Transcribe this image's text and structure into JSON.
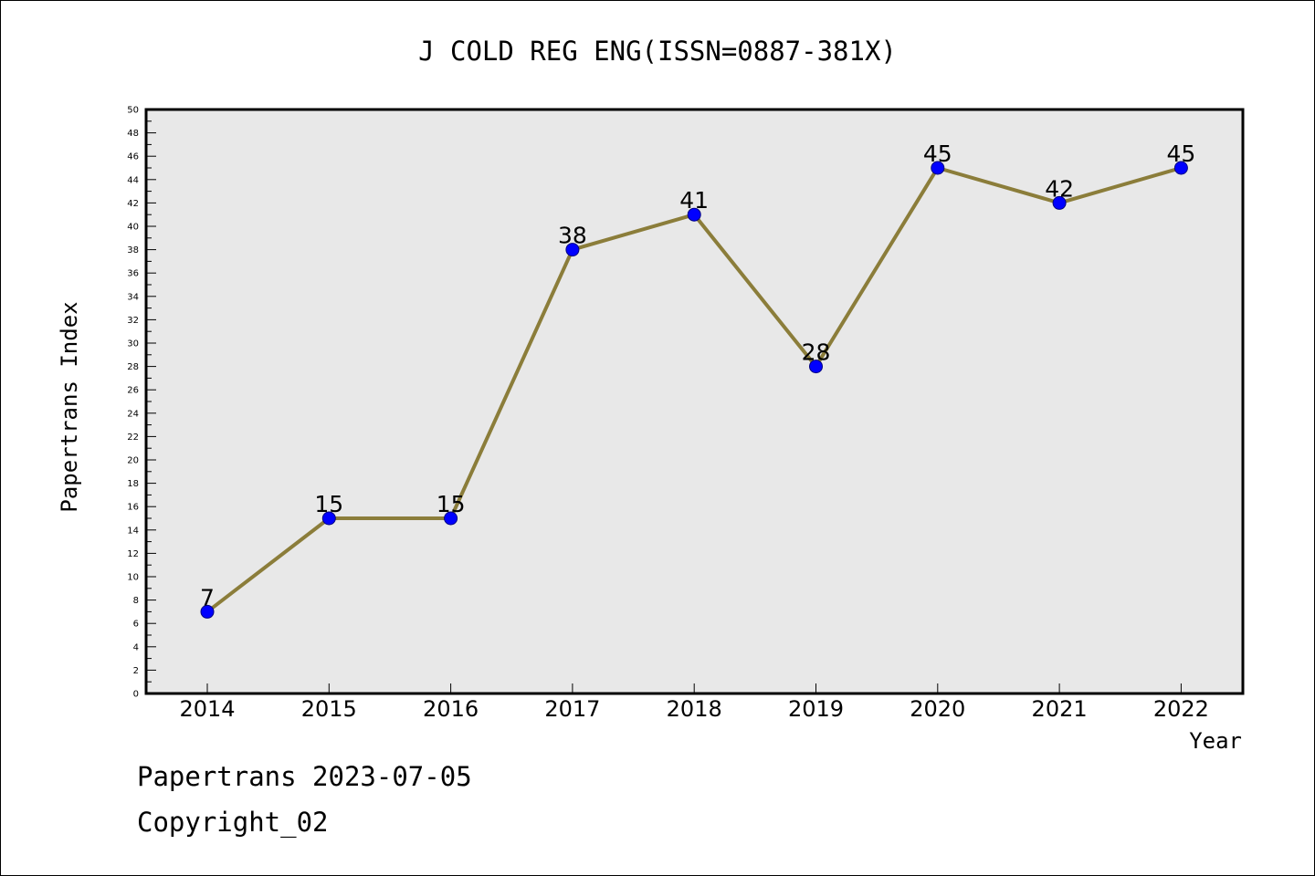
{
  "chart_data": {
    "type": "line",
    "title": "J COLD REG ENG(ISSN=0887-381X)",
    "xlabel": "Year",
    "ylabel": "Papertrans Index",
    "categories": [
      "2014",
      "2015",
      "2016",
      "2017",
      "2018",
      "2019",
      "2020",
      "2021",
      "2022"
    ],
    "values": [
      7,
      15,
      15,
      38,
      41,
      28,
      45,
      42,
      45
    ],
    "data_labels": [
      "7",
      "15",
      "15",
      "38",
      "41",
      "28",
      "45",
      "42",
      "45"
    ],
    "ylim": [
      0,
      50
    ],
    "yticks": [
      0,
      2,
      4,
      6,
      8,
      10,
      12,
      14,
      16,
      18,
      20,
      22,
      24,
      26,
      28,
      30,
      32,
      34,
      36,
      38,
      40,
      42,
      44,
      46,
      48,
      50
    ],
    "ytick_labels": [
      "0",
      "2",
      "4",
      "6",
      "8",
      "10",
      "12",
      "14",
      "16",
      "18",
      "20",
      "22",
      "24",
      "26",
      "28",
      "30",
      "32",
      "34",
      "36",
      "38",
      "40",
      "42",
      "44",
      "46",
      "48",
      "50"
    ],
    "grid": false,
    "legend": "none",
    "colors": {
      "line": "#8b7d3a",
      "marker_fill": "#0000ff",
      "marker_edge": "#000080",
      "plot_background": "#e8e8e8"
    }
  },
  "footer": {
    "source": "Papertrans 2023-07-05",
    "copyright": "Copyright_02"
  }
}
